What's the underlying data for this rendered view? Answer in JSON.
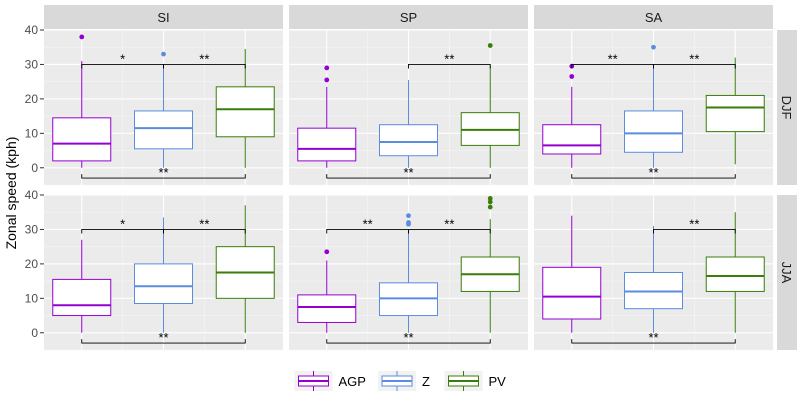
{
  "chart_data": {
    "type": "boxplot",
    "ylabel": "Zonal speed (kph)",
    "ylim": [
      -5,
      40
    ],
    "yticks": [
      0,
      10,
      20,
      30,
      40
    ],
    "columns": [
      "SI",
      "SP",
      "SA"
    ],
    "rows": [
      "DJF",
      "JJA"
    ],
    "categories": [
      "AGP",
      "Z",
      "PV"
    ],
    "colors": {
      "AGP": "#9400d3",
      "Z": "#5b8ce0",
      "PV": "#3a7d0a"
    },
    "legend_position": "bottom",
    "panels": [
      {
        "row": "DJF",
        "column": "SI",
        "boxes": [
          {
            "group": "AGP",
            "min": 0,
            "q1": 2,
            "median": 7,
            "q3": 14.5,
            "max": 31,
            "outliers": [
              38
            ]
          },
          {
            "group": "Z",
            "min": 0,
            "q1": 5.5,
            "median": 11.5,
            "q3": 16.5,
            "max": 30,
            "outliers": [
              33
            ]
          },
          {
            "group": "PV",
            "min": 0,
            "q1": 9,
            "median": 17,
            "q3": 23.5,
            "max": 34.5,
            "outliers": []
          }
        ],
        "brackets": [
          {
            "from": "AGP",
            "to": "Z",
            "y": 30,
            "label": "*"
          },
          {
            "from": "Z",
            "to": "PV",
            "y": 30,
            "label": "**"
          },
          {
            "from": "AGP",
            "to": "PV",
            "y": -3,
            "label": "**"
          }
        ]
      },
      {
        "row": "DJF",
        "column": "SP",
        "boxes": [
          {
            "group": "AGP",
            "min": 0,
            "q1": 2,
            "median": 5.5,
            "q3": 11.5,
            "max": 23.5,
            "outliers": [
              25.5,
              29
            ]
          },
          {
            "group": "Z",
            "min": 0,
            "q1": 3.5,
            "median": 7.5,
            "q3": 12.5,
            "max": 25.5,
            "outliers": []
          },
          {
            "group": "PV",
            "min": 0,
            "q1": 6.5,
            "median": 11,
            "q3": 16,
            "max": 29.5,
            "outliers": [
              35.5
            ]
          }
        ],
        "brackets": [
          {
            "from": "Z",
            "to": "PV",
            "y": 30,
            "label": "**"
          },
          {
            "from": "AGP",
            "to": "PV",
            "y": -3,
            "label": "**"
          }
        ]
      },
      {
        "row": "DJF",
        "column": "SA",
        "boxes": [
          {
            "group": "AGP",
            "min": 0,
            "q1": 4,
            "median": 6.5,
            "q3": 12.5,
            "max": 23.5,
            "outliers": [
              26.5,
              29.5
            ]
          },
          {
            "group": "Z",
            "min": 0,
            "q1": 4.5,
            "median": 10,
            "q3": 16.5,
            "max": 30,
            "outliers": [
              35
            ]
          },
          {
            "group": "PV",
            "min": 1,
            "q1": 10.5,
            "median": 17.5,
            "q3": 21,
            "max": 32,
            "outliers": []
          }
        ],
        "brackets": [
          {
            "from": "AGP",
            "to": "Z",
            "y": 30,
            "label": "**"
          },
          {
            "from": "Z",
            "to": "PV",
            "y": 30,
            "label": "**"
          },
          {
            "from": "AGP",
            "to": "PV",
            "y": -3,
            "label": "**"
          }
        ]
      },
      {
        "row": "JJA",
        "column": "SI",
        "boxes": [
          {
            "group": "AGP",
            "min": 0,
            "q1": 5,
            "median": 8,
            "q3": 15.5,
            "max": 27,
            "outliers": []
          },
          {
            "group": "Z",
            "min": 0,
            "q1": 8.5,
            "median": 13.5,
            "q3": 20,
            "max": 33.5,
            "outliers": []
          },
          {
            "group": "PV",
            "min": 0,
            "q1": 10,
            "median": 17.5,
            "q3": 25,
            "max": 37,
            "outliers": []
          }
        ],
        "brackets": [
          {
            "from": "AGP",
            "to": "Z",
            "y": 30,
            "label": "*"
          },
          {
            "from": "Z",
            "to": "PV",
            "y": 30,
            "label": "**"
          },
          {
            "from": "AGP",
            "to": "PV",
            "y": -3,
            "label": "**"
          }
        ]
      },
      {
        "row": "JJA",
        "column": "SP",
        "boxes": [
          {
            "group": "AGP",
            "min": 0,
            "q1": 3,
            "median": 7.5,
            "q3": 11,
            "max": 21,
            "outliers": [
              23.5
            ]
          },
          {
            "group": "Z",
            "min": 0,
            "q1": 5,
            "median": 10,
            "q3": 14.5,
            "max": 30,
            "outliers": [
              31.5,
              32,
              34
            ]
          },
          {
            "group": "PV",
            "min": 0,
            "q1": 12,
            "median": 17,
            "q3": 22,
            "max": 33,
            "outliers": [
              36.5,
              38,
              39
            ]
          }
        ],
        "brackets": [
          {
            "from": "AGP",
            "to": "Z",
            "y": 30,
            "label": "**"
          },
          {
            "from": "Z",
            "to": "PV",
            "y": 30,
            "label": "**"
          },
          {
            "from": "AGP",
            "to": "PV",
            "y": -3,
            "label": "**"
          }
        ]
      },
      {
        "row": "JJA",
        "column": "SA",
        "boxes": [
          {
            "group": "AGP",
            "min": 0,
            "q1": 4,
            "median": 10.5,
            "q3": 19,
            "max": 34,
            "outliers": []
          },
          {
            "group": "Z",
            "min": 0,
            "q1": 7,
            "median": 12,
            "q3": 17.5,
            "max": 31,
            "outliers": []
          },
          {
            "group": "PV",
            "min": 0,
            "q1": 12,
            "median": 16.5,
            "q3": 22,
            "max": 35,
            "outliers": []
          }
        ],
        "brackets": [
          {
            "from": "Z",
            "to": "PV",
            "y": 30,
            "label": "**"
          },
          {
            "from": "AGP",
            "to": "PV",
            "y": -3,
            "label": "**"
          }
        ]
      }
    ]
  }
}
